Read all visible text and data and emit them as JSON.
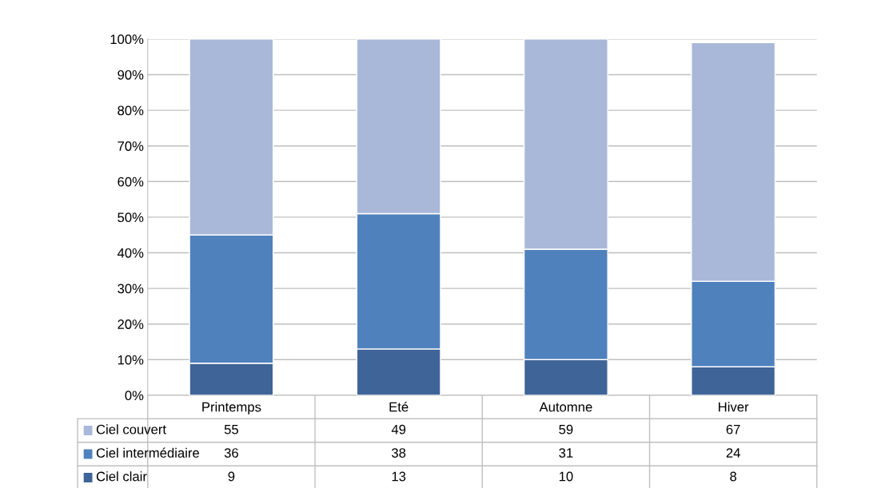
{
  "chart_data": {
    "type": "bar",
    "stacked": true,
    "categories": [
      "Printemps",
      "Eté",
      "Automne",
      "Hiver"
    ],
    "series": [
      {
        "name": "Ciel clair",
        "color": "#3f6497",
        "values": [
          9,
          13,
          10,
          8
        ]
      },
      {
        "name": "Ciel intermédiaire",
        "color": "#4f81bd",
        "values": [
          36,
          38,
          31,
          24
        ]
      },
      {
        "name": "Ciel couvert",
        "color": "#a9b8d8",
        "values": [
          55,
          49,
          59,
          67
        ]
      }
    ],
    "ylim": [
      0,
      100
    ],
    "yticks": [
      {
        "value": 0,
        "label": "0%"
      },
      {
        "value": 10,
        "label": "10%"
      },
      {
        "value": 20,
        "label": "20%"
      },
      {
        "value": 30,
        "label": "30%"
      },
      {
        "value": 40,
        "label": "40%"
      },
      {
        "value": 50,
        "label": "50%"
      },
      {
        "value": 60,
        "label": "60%"
      },
      {
        "value": 70,
        "label": "70%"
      },
      {
        "value": 80,
        "label": "80%"
      },
      {
        "value": 90,
        "label": "90%"
      },
      {
        "value": 100,
        "label": "100%"
      }
    ],
    "grid": "y",
    "data_labels": true,
    "legend": "bottom left"
  }
}
